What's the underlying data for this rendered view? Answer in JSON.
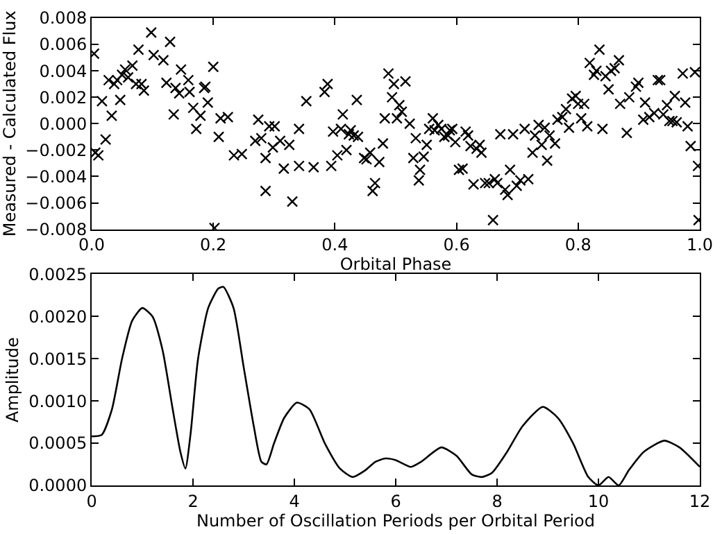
{
  "chart_data": [
    {
      "type": "scatter",
      "xlabel": "Orbital Phase",
      "ylabel": "Measured - Calculated Flux",
      "marker": "cross",
      "legend": false,
      "xlim": [
        0,
        1
      ],
      "xticks": [
        {
          "value": 0,
          "label": "0.0"
        },
        0.2,
        0.4,
        0.6,
        0.8,
        {
          "value": 1,
          "label": "1.0"
        }
      ],
      "ylim": [
        -0.008,
        0.008
      ],
      "yticks": [
        {
          "value": -0.008,
          "label": "−0.008"
        },
        {
          "value": -0.006,
          "label": "−0.006"
        },
        {
          "value": -0.004,
          "label": "−0.004"
        },
        {
          "value": -0.002,
          "label": "−0.002"
        },
        {
          "value": 0,
          "label": "0.000"
        },
        0.002,
        0.004,
        0.006,
        0.008
      ],
      "series": [
        {
          "color": "#000000",
          "x": [
            0.004,
            0.006,
            0.011,
            0.017,
            0.023,
            0.028,
            0.033,
            0.037,
            0.042,
            0.047,
            0.05,
            0.055,
            0.06,
            0.067,
            0.073,
            0.077,
            0.082,
            0.086,
            0.098,
            0.102,
            0.118,
            0.123,
            0.129,
            0.135,
            0.138,
            0.144,
            0.147,
            0.159,
            0.161,
            0.167,
            0.172,
            0.179,
            0.185,
            0.187,
            0.191,
            0.2,
            0.202,
            0.209,
            0.212,
            0.224,
            0.234,
            0.247,
            0.269,
            0.274,
            0.279,
            0.286,
            0.286,
            0.292,
            0.298,
            0.301,
            0.31,
            0.316,
            0.325,
            0.33,
            0.341,
            0.353,
            0.341,
            0.365,
            0.383,
            0.388,
            0.394,
            0.397,
            0.404,
            0.41,
            0.413,
            0.419,
            0.423,
            0.426,
            0.431,
            0.436,
            0.438,
            0.448,
            0.452,
            0.458,
            0.462,
            0.466,
            0.473,
            0.479,
            0.482,
            0.488,
            0.494,
            0.497,
            0.502,
            0.506,
            0.51,
            0.516,
            0.523,
            0.529,
            0.533,
            0.538,
            0.54,
            0.546,
            0.551,
            0.555,
            0.561,
            0.564,
            0.57,
            0.575,
            0.58,
            0.586,
            0.589,
            0.593,
            0.598,
            0.604,
            0.61,
            0.615,
            0.619,
            0.623,
            0.628,
            0.633,
            0.638,
            0.641,
            0.647,
            0.653,
            0.66,
            0.663,
            0.667,
            0.672,
            0.68,
            0.684,
            0.688,
            0.693,
            0.699,
            0.705,
            0.712,
            0.718,
            0.725,
            0.729,
            0.735,
            0.74,
            0.745,
            0.749,
            0.753,
            0.762,
            0.766,
            0.774,
            0.78,
            0.785,
            0.79,
            0.796,
            0.8,
            0.805,
            0.81,
            0.815,
            0.819,
            0.826,
            0.83,
            0.835,
            0.84,
            0.845,
            0.85,
            0.854,
            0.86,
            0.867,
            0.869,
            0.88,
            0.884,
            0.895,
            0.899,
            0.91,
            0.907,
            0.917,
            0.925,
            0.931,
            0.935,
            0.94,
            0.946,
            0.95,
            0.955,
            0.959,
            0.962,
            0.972,
            0.976,
            0.98,
            0.985,
            0.992,
            0.997,
            0.998
          ],
          "values": [
            0.0053,
            -0.0022,
            -0.0024,
            0.0017,
            -0.0012,
            0.0033,
            0.0006,
            0.003,
            0.0033,
            0.0018,
            0.0037,
            0.0041,
            0.0035,
            0.0044,
            0.003,
            0.0056,
            0.003,
            0.0025,
            0.0069,
            0.0052,
            0.0048,
            0.0031,
            0.0062,
            0.0007,
            0.0027,
            0.0023,
            0.0041,
            0.0033,
            0.0024,
            0.0012,
            -0.0004,
            0.0006,
            0.0027,
            0.0028,
            0.0016,
            0.0043,
            -0.0079,
            -0.001,
            0.0004,
            0.0005,
            -0.0024,
            -0.0023,
            -0.0013,
            0.0003,
            -0.0011,
            -0.0026,
            -0.0051,
            -0.0002,
            -0.0018,
            -0.0002,
            -0.0013,
            -0.0034,
            -0.0016,
            -0.0059,
            -0.0032,
            0.0017,
            -0.0004,
            -0.0033,
            0.0024,
            0.003,
            -0.0032,
            -0.0006,
            -0.0024,
            -0.0004,
            0.0007,
            -0.002,
            -0.0008,
            -0.0005,
            -0.0009,
            0.0018,
            -0.001,
            -0.0026,
            -0.0027,
            -0.0022,
            -0.0051,
            -0.0045,
            -0.0029,
            -0.0015,
            0.0004,
            0.0038,
            0.002,
            0.003,
            0.0004,
            0.0014,
            0.0009,
            0.0032,
            0.0,
            -0.0026,
            -0.0011,
            -0.0043,
            -0.0035,
            -0.0025,
            -0.0016,
            -0.0004,
            0.0004,
            -0.0005,
            -0.0001,
            -0.0004,
            -0.001,
            -0.0009,
            -0.0005,
            -0.0004,
            -0.0014,
            -0.0035,
            -0.0034,
            -0.0006,
            -0.0009,
            -0.0017,
            -0.0046,
            -0.0019,
            -0.0016,
            -0.0022,
            -0.0045,
            -0.0045,
            -0.0073,
            -0.0042,
            -0.0045,
            -0.0008,
            -0.005,
            -0.0054,
            -0.0035,
            -0.0008,
            -0.0047,
            -0.0043,
            -0.0004,
            -0.0042,
            -0.0022,
            -0.0009,
            -0.0001,
            -0.0016,
            -0.0003,
            -0.0028,
            -0.0009,
            -0.0015,
            0.0003,
            0.0005,
            0.0011,
            -0.0003,
            0.0019,
            0.0021,
            0.0015,
            0.0004,
            0.0015,
            -0.0002,
            0.0046,
            0.0037,
            0.004,
            0.0056,
            -0.0004,
            0.0036,
            0.0026,
            0.004,
            0.0042,
            0.0048,
            0.0015,
            -0.0007,
            0.002,
            0.0028,
            0.0031,
            0.0016,
            0.0003,
            0.0005,
            0.0008,
            0.0033,
            0.0033,
            0.0007,
            0.0014,
            0.0002,
            0.0002,
            0.0021,
            0.0001,
            0.0038,
            0.0016,
            -0.0002,
            -0.0017,
            0.0039,
            -0.0032,
            -0.0073
          ]
        }
      ]
    },
    {
      "type": "line",
      "xlabel": "Number of Oscillation Periods per Orbital Period",
      "ylabel": "Amplitude",
      "marker": "none",
      "line_style": "solid",
      "legend": false,
      "xlim": [
        0,
        12
      ],
      "xticks": [
        0,
        2,
        4,
        6,
        8,
        10,
        12
      ],
      "ylim": [
        0,
        0.0025
      ],
      "yticks": [
        {
          "value": 0,
          "label": "0.0000"
        },
        0.0005,
        {
          "value": 0.001,
          "label": "0.0010"
        },
        0.0015,
        {
          "value": 0.002,
          "label": "0.0020"
        },
        0.0025
      ],
      "series": [
        {
          "color": "#000000",
          "x": [
            0,
            0.2,
            0.4,
            0.6,
            0.8,
            1.0,
            1.2,
            1.4,
            1.6,
            1.75,
            1.85,
            1.95,
            2.1,
            2.3,
            2.5,
            2.6,
            2.8,
            3.0,
            3.2,
            3.35,
            3.45,
            3.6,
            3.8,
            4.05,
            4.3,
            4.6,
            4.9,
            5.15,
            5.4,
            5.6,
            5.8,
            6.0,
            6.3,
            6.5,
            6.9,
            7.2,
            7.5,
            7.7,
            7.9,
            8.2,
            8.5,
            8.9,
            9.2,
            9.5,
            9.8,
            10.0,
            10.2,
            10.4,
            10.6,
            10.9,
            11.3,
            11.6,
            12.0
          ],
          "values": [
            0.00058,
            0.0006,
            0.0009,
            0.0015,
            0.00195,
            0.0021,
            0.002,
            0.0016,
            0.0009,
            0.0004,
            0.0002,
            0.0006,
            0.0015,
            0.0021,
            0.00233,
            0.00235,
            0.0021,
            0.0014,
            0.0007,
            0.00028,
            0.00025,
            0.0005,
            0.0008,
            0.00098,
            0.0009,
            0.0005,
            0.0002,
            0.0001,
            0.00018,
            0.00028,
            0.00032,
            0.0003,
            0.00022,
            0.00028,
            0.00045,
            0.00035,
            0.00013,
            0.0001,
            0.00015,
            0.0004,
            0.0007,
            0.00093,
            0.0008,
            0.0005,
            0.0001,
            0.0,
            0.0001,
            0.0,
            0.00018,
            0.0004,
            0.00053,
            0.00045,
            0.00022
          ]
        }
      ]
    }
  ]
}
